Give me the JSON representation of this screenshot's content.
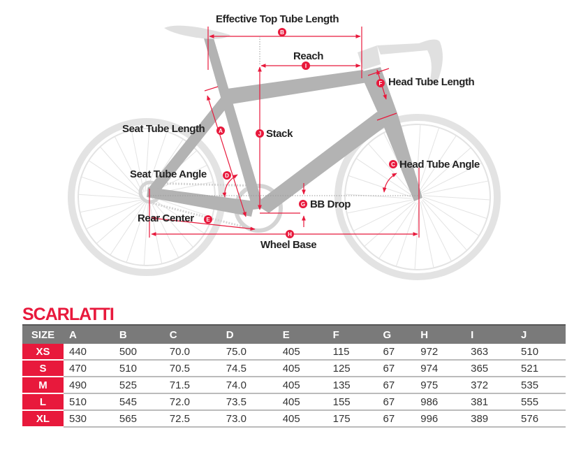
{
  "diagram": {
    "labels": {
      "effective_top_tube": "Effective Top Tube Length",
      "reach": "Reach",
      "head_tube_length": "Head Tube Length",
      "seat_tube_length": "Seat Tube Length",
      "stack": "Stack",
      "seat_tube_angle": "Seat Tube Angle",
      "head_tube_angle": "Head Tube Angle",
      "bb_drop": "BB Drop",
      "rear_center": "Rear Center",
      "wheel_base": "Wheel Base"
    },
    "markers": {
      "A": "A",
      "B": "B",
      "C": "C",
      "D": "D",
      "E": "E",
      "F": "F",
      "G": "G",
      "H": "H",
      "I": "I",
      "J": "J"
    },
    "accent": "#e8193c"
  },
  "table": {
    "title": "SCARLATTI",
    "headers": [
      "SIZE",
      "A",
      "B",
      "C",
      "D",
      "E",
      "F",
      "G",
      "H",
      "I",
      "J"
    ],
    "rows": [
      [
        "XS",
        "440",
        "500",
        "70.0",
        "75.0",
        "405",
        "115",
        "67",
        "972",
        "363",
        "510"
      ],
      [
        "S",
        "470",
        "510",
        "70.5",
        "74.5",
        "405",
        "125",
        "67",
        "974",
        "365",
        "521"
      ],
      [
        "M",
        "490",
        "525",
        "71.5",
        "74.0",
        "405",
        "135",
        "67",
        "975",
        "372",
        "535"
      ],
      [
        "L",
        "510",
        "545",
        "72.0",
        "73.5",
        "405",
        "155",
        "67",
        "986",
        "381",
        "555"
      ],
      [
        "XL",
        "530",
        "565",
        "72.5",
        "73.0",
        "405",
        "175",
        "67",
        "996",
        "389",
        "576"
      ]
    ]
  }
}
